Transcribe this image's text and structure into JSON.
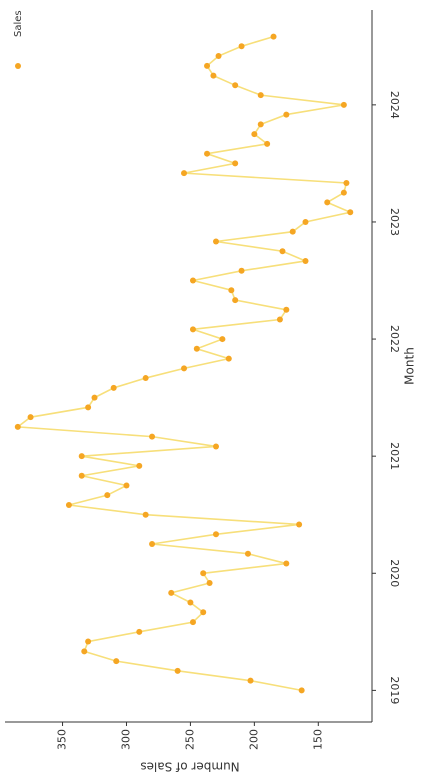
{
  "chart_data": {
    "type": "line",
    "x_label": "Month",
    "y_label": "Number of Sales",
    "x": [
      2019,
      2019.083,
      2019.167,
      2019.25,
      2019.333,
      2019.417,
      2019.5,
      2019.583,
      2019.667,
      2019.75,
      2019.833,
      2019.917,
      2020,
      2020.083,
      2020.167,
      2020.25,
      2020.333,
      2020.417,
      2020.5,
      2020.583,
      2020.667,
      2020.75,
      2020.833,
      2020.917,
      2021,
      2021.083,
      2021.167,
      2021.25,
      2021.333,
      2021.417,
      2021.5,
      2021.583,
      2021.667,
      2021.75,
      2021.833,
      2021.917,
      2022,
      2022.083,
      2022.167,
      2022.25,
      2022.333,
      2022.417,
      2022.5,
      2022.583,
      2022.667,
      2022.75,
      2022.833,
      2022.917,
      2023,
      2023.083,
      2023.167,
      2023.25,
      2023.333,
      2023.417,
      2023.5,
      2023.583,
      2023.667,
      2023.75,
      2023.833,
      2023.917,
      2024,
      2024.083,
      2024.167,
      2024.25,
      2024.333,
      2024.417,
      2024.5,
      2024.583
    ],
    "series": [
      {
        "name": "Sales",
        "color": "#f5a623",
        "line_color": "#f7df7a",
        "values": [
          163,
          203,
          260,
          308,
          333,
          330,
          290,
          248,
          240,
          250,
          265,
          235,
          240,
          175,
          205,
          280,
          230,
          165,
          285,
          345,
          315,
          300,
          335,
          290,
          335,
          230,
          280,
          385,
          375,
          330,
          325,
          310,
          285,
          255,
          220,
          245,
          225,
          248,
          180,
          175,
          215,
          218,
          248,
          210,
          160,
          178,
          230,
          170,
          160,
          125,
          143,
          130,
          128,
          255,
          215,
          237,
          190,
          200,
          195,
          175,
          130,
          195,
          215,
          232,
          237,
          228,
          210,
          185
        ]
      }
    ],
    "xlim": [
      2018.73,
      2024.81
    ],
    "xticks": [
      2019,
      2020,
      2021,
      2022,
      2023,
      2024
    ],
    "ylim": [
      108,
      395
    ],
    "yticks": [
      150,
      200,
      250,
      300,
      350
    ],
    "legend": "upper right",
    "grid": false
  }
}
